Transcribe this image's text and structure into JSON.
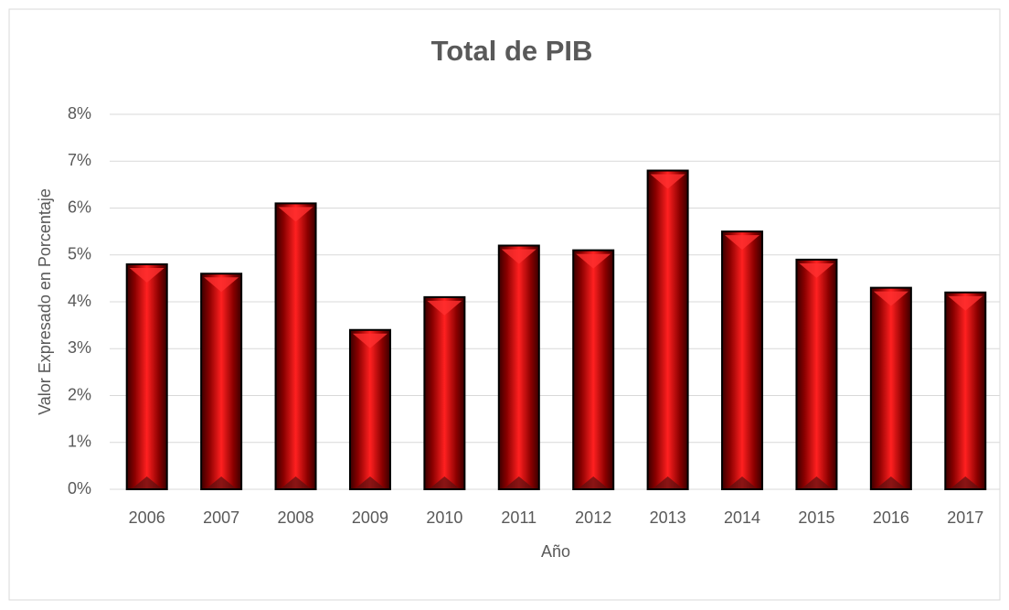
{
  "chart_data": {
    "type": "bar",
    "title": "Total de PIB",
    "x_label": "Año",
    "y_label": "Valor Expresado en Porcentaje",
    "categories": [
      "2006",
      "2007",
      "2008",
      "2009",
      "2010",
      "2011",
      "2012",
      "2013",
      "2014",
      "2015",
      "2016",
      "2017"
    ],
    "values": [
      4.8,
      4.6,
      6.1,
      3.4,
      4.1,
      5.2,
      5.1,
      6.8,
      5.5,
      4.9,
      4.3,
      4.2
    ],
    "color": "#c00000",
    "ylim": [
      0,
      8
    ],
    "yticks": [
      {
        "value": 0,
        "label": "0%"
      },
      {
        "value": 1,
        "label": "1%"
      },
      {
        "value": 2,
        "label": "2%"
      },
      {
        "value": 3,
        "label": "3%"
      },
      {
        "value": 4,
        "label": "4%"
      },
      {
        "value": 5,
        "label": "5%"
      },
      {
        "value": 6,
        "label": "6%"
      },
      {
        "value": 7,
        "label": "7%"
      },
      {
        "value": 8,
        "label": "8%"
      }
    ],
    "grid": true
  }
}
